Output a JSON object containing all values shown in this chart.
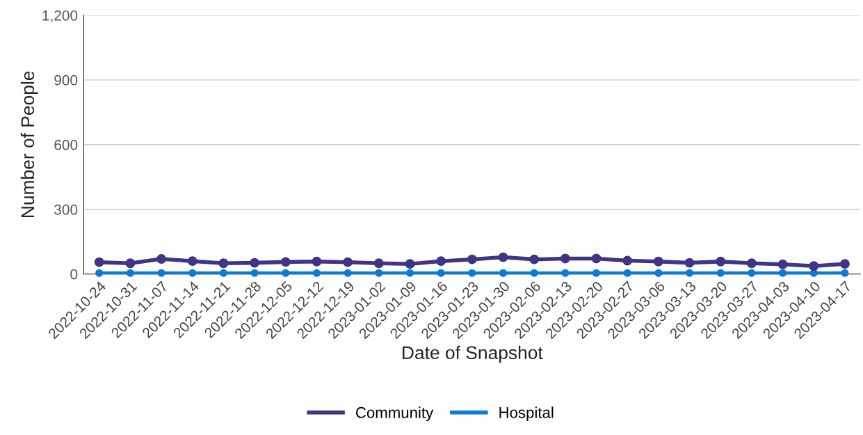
{
  "chart_data": {
    "type": "line",
    "xlabel": "Date of Snapshot",
    "ylabel": "Number of People",
    "categories": [
      "2022-10-24",
      "2022-10-31",
      "2022-11-07",
      "2022-11-14",
      "2022-11-21",
      "2022-11-28",
      "2022-12-05",
      "2022-12-12",
      "2022-12-19",
      "2023-01-02",
      "2023-01-09",
      "2023-01-16",
      "2023-01-23",
      "2023-01-30",
      "2023-02-06",
      "2023-02-13",
      "2023-02-20",
      "2023-02-27",
      "2023-03-06",
      "2023-03-13",
      "2023-03-20",
      "2023-03-27",
      "2023-04-03",
      "2023-04-10",
      "2023-04-17"
    ],
    "series": [
      {
        "name": "Community",
        "color": "#3f3585",
        "values": [
          55,
          50,
          70,
          60,
          50,
          52,
          56,
          58,
          55,
          50,
          47,
          60,
          68,
          78,
          68,
          72,
          72,
          62,
          58,
          52,
          58,
          50,
          45,
          37,
          47
        ]
      },
      {
        "name": "Hospital",
        "color": "#0a7bd6",
        "values": [
          5,
          5,
          5,
          5,
          5,
          5,
          5,
          5,
          5,
          5,
          5,
          5,
          5,
          5,
          5,
          5,
          5,
          5,
          5,
          5,
          5,
          5,
          5,
          5,
          5
        ]
      }
    ],
    "ylim": [
      0,
      1200
    ],
    "yticks": [
      0,
      300,
      600,
      900,
      {
        "value": 1200,
        "label": "1,200"
      }
    ],
    "grid": "y",
    "legend": "bottom",
    "marker": "circle",
    "line_style": "solid"
  }
}
